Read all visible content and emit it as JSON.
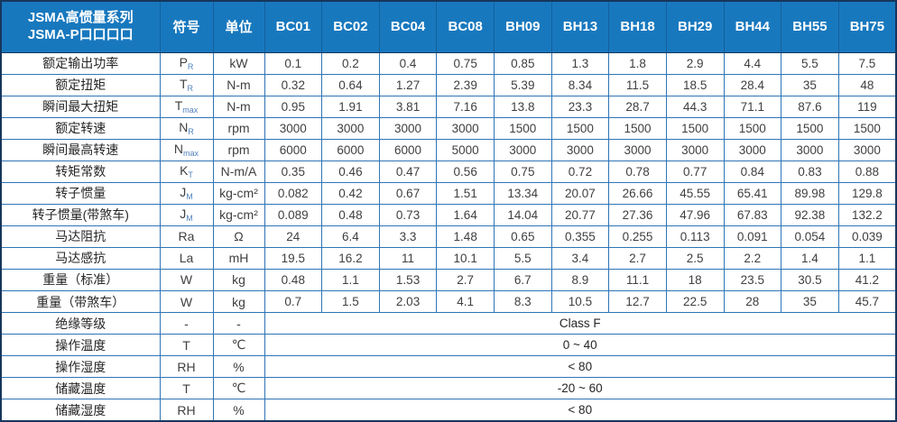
{
  "table": {
    "title_line1": "JSMA高惯量系列",
    "title_line2": "JSMA-P口口口口",
    "header": {
      "symbol_label": "符号",
      "unit_label": "单位",
      "models": [
        "BC01",
        "BC02",
        "BC04",
        "BC08",
        "BH09",
        "BH13",
        "BH18",
        "BH29",
        "BH44",
        "BH55",
        "BH75"
      ]
    },
    "rows": [
      {
        "label": "额定输出功率",
        "symbol": "P",
        "symbol_sub": "R",
        "unit": "kW",
        "values": [
          "0.1",
          "0.2",
          "0.4",
          "0.75",
          "0.85",
          "1.3",
          "1.8",
          "2.9",
          "4.4",
          "5.5",
          "7.5"
        ]
      },
      {
        "label": "额定扭矩",
        "symbol": "T",
        "symbol_sub": "R",
        "unit": "N-m",
        "values": [
          "0.32",
          "0.64",
          "1.27",
          "2.39",
          "5.39",
          "8.34",
          "11.5",
          "18.5",
          "28.4",
          "35",
          "48"
        ]
      },
      {
        "label": "瞬间最大扭矩",
        "symbol": "T",
        "symbol_sub": "max",
        "unit": "N-m",
        "values": [
          "0.95",
          "1.91",
          "3.81",
          "7.16",
          "13.8",
          "23.3",
          "28.7",
          "44.3",
          "71.1",
          "87.6",
          "119"
        ]
      },
      {
        "label": "额定转速",
        "symbol": "N",
        "symbol_sub": "R",
        "unit": "rpm",
        "values": [
          "3000",
          "3000",
          "3000",
          "3000",
          "1500",
          "1500",
          "1500",
          "1500",
          "1500",
          "1500",
          "1500"
        ]
      },
      {
        "label": "瞬间最高转速",
        "symbol": "N",
        "symbol_sub": "max",
        "unit": "rpm",
        "values": [
          "6000",
          "6000",
          "6000",
          "5000",
          "3000",
          "3000",
          "3000",
          "3000",
          "3000",
          "3000",
          "3000"
        ]
      },
      {
        "label": "转矩常数",
        "symbol": "K",
        "symbol_sub": "T",
        "unit": "N-m/A",
        "values": [
          "0.35",
          "0.46",
          "0.47",
          "0.56",
          "0.75",
          "0.72",
          "0.78",
          "0.77",
          "0.84",
          "0.83",
          "0.88"
        ]
      },
      {
        "label": "转子惯量",
        "symbol": "J",
        "symbol_sub": "M",
        "unit": "kg-cm²",
        "values": [
          "0.082",
          "0.42",
          "0.67",
          "1.51",
          "13.34",
          "20.07",
          "26.66",
          "45.55",
          "65.41",
          "89.98",
          "129.8"
        ]
      },
      {
        "label": "转子惯量(带煞车)",
        "symbol": "J",
        "symbol_sub": "M",
        "unit": "kg-cm²",
        "values": [
          "0.089",
          "0.48",
          "0.73",
          "1.64",
          "14.04",
          "20.77",
          "27.36",
          "47.96",
          "67.83",
          "92.38",
          "132.2"
        ]
      },
      {
        "label": "马达阻抗",
        "symbol": "Ra",
        "symbol_sub": "",
        "unit": "Ω",
        "values": [
          "24",
          "6.4",
          "3.3",
          "1.48",
          "0.65",
          "0.355",
          "0.255",
          "0.113",
          "0.091",
          "0.054",
          "0.039"
        ]
      },
      {
        "label": "马达感抗",
        "symbol": "La",
        "symbol_sub": "",
        "unit": "mH",
        "values": [
          "19.5",
          "16.2",
          "11",
          "10.1",
          "5.5",
          "3.4",
          "2.7",
          "2.5",
          "2.2",
          "1.4",
          "1.1"
        ]
      },
      {
        "label": "重量（标准）",
        "symbol": "W",
        "symbol_sub": "",
        "unit": "kg",
        "values": [
          "0.48",
          "1.1",
          "1.53",
          "2.7",
          "6.7",
          "8.9",
          "11.1",
          "18",
          "23.5",
          "30.5",
          "41.2"
        ]
      },
      {
        "label": "重量（带煞车）",
        "symbol": "W",
        "symbol_sub": "",
        "unit": "kg",
        "values": [
          "0.7",
          "1.5",
          "2.03",
          "4.1",
          "8.3",
          "10.5",
          "12.7",
          "22.5",
          "28",
          "35",
          "45.7"
        ]
      },
      {
        "label": "绝缘等级",
        "symbol": "-",
        "symbol_sub": "",
        "unit": "-",
        "span_value": "Class F"
      },
      {
        "label": "操作温度",
        "symbol": "T",
        "symbol_sub": "",
        "unit": "℃",
        "span_value": "0 ~ 40"
      },
      {
        "label": "操作湿度",
        "symbol": "RH",
        "symbol_sub": "",
        "unit": "%",
        "span_value": "< 80"
      },
      {
        "label": "储藏温度",
        "symbol": "T",
        "symbol_sub": "",
        "unit": "℃",
        "span_value": "-20 ~ 60"
      },
      {
        "label": "储藏湿度",
        "symbol": "RH",
        "symbol_sub": "",
        "unit": "%",
        "span_value": "< 80"
      }
    ],
    "colors": {
      "header_background": "#1878be",
      "header_text": "#ffffff",
      "grid_border": "#2e75b6",
      "outer_border": "#16365c",
      "value_text": "#3f3f3f",
      "subscript_blue": "#4f81bd"
    }
  }
}
